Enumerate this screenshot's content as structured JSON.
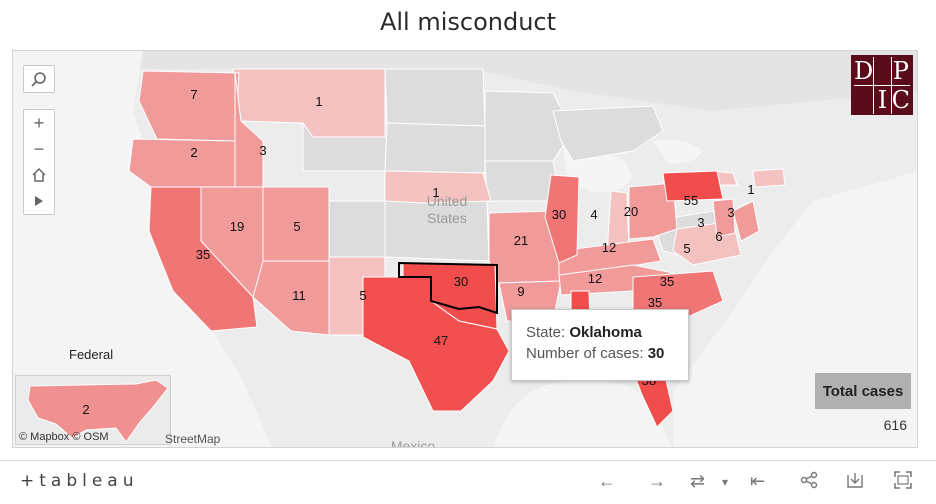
{
  "title": "All misconduct",
  "colors": {
    "high": "#f24d4d",
    "mid": "#f08e8e",
    "low": "#f4c1c1",
    "none": "#dcdcdc",
    "logo_bg": "#5a0c1a"
  },
  "logo_letters": [
    "D",
    "P",
    "I",
    "C"
  ],
  "map_labels": {
    "country_us": "United\nStates",
    "country_us_1": "United",
    "country_us_2": "States",
    "country_mx": "Mexico"
  },
  "states": [
    {
      "id": "WA",
      "value": "7"
    },
    {
      "id": "MT",
      "value": "1"
    },
    {
      "id": "OR",
      "value": "2"
    },
    {
      "id": "ID",
      "value": "3"
    },
    {
      "id": "NE",
      "value": "1"
    },
    {
      "id": "CA",
      "value": "35"
    },
    {
      "id": "NV",
      "value": "19"
    },
    {
      "id": "UT",
      "value": "5"
    },
    {
      "id": "AZ",
      "value": "11"
    },
    {
      "id": "NM",
      "value": "5"
    },
    {
      "id": "TX",
      "value": "47"
    },
    {
      "id": "OK",
      "value": "30"
    },
    {
      "id": "MO",
      "value": "21"
    },
    {
      "id": "IL",
      "value": "30"
    },
    {
      "id": "IN",
      "value": "4"
    },
    {
      "id": "OH",
      "value": "20"
    },
    {
      "id": "PA",
      "value": "55"
    },
    {
      "id": "MA",
      "value": "1"
    },
    {
      "id": "KY",
      "value": "12"
    },
    {
      "id": "TN",
      "value": "12"
    },
    {
      "id": "AR",
      "value": "9"
    },
    {
      "id": "NC",
      "value": "35"
    },
    {
      "id": "SC",
      "value": "35"
    },
    {
      "id": "VA",
      "value": "5"
    },
    {
      "id": "MD",
      "value": "6"
    },
    {
      "id": "NJ",
      "value": "3"
    },
    {
      "id": "DE",
      "value": "3"
    },
    {
      "id": "FL",
      "value": "58"
    }
  ],
  "tooltip": {
    "state_label": "State:",
    "state_value": "Oklahoma",
    "cases_label": "Number of cases:",
    "cases_value": "30"
  },
  "federal": {
    "label": "Federal",
    "value": "2"
  },
  "attribution": {
    "mapbox": "© Mapbox",
    "osm": "© OSM",
    "streetmap": "StreetMap"
  },
  "total": {
    "label": "Total cases",
    "value": "616"
  },
  "toolbar": {
    "logo": "+tableau"
  }
}
